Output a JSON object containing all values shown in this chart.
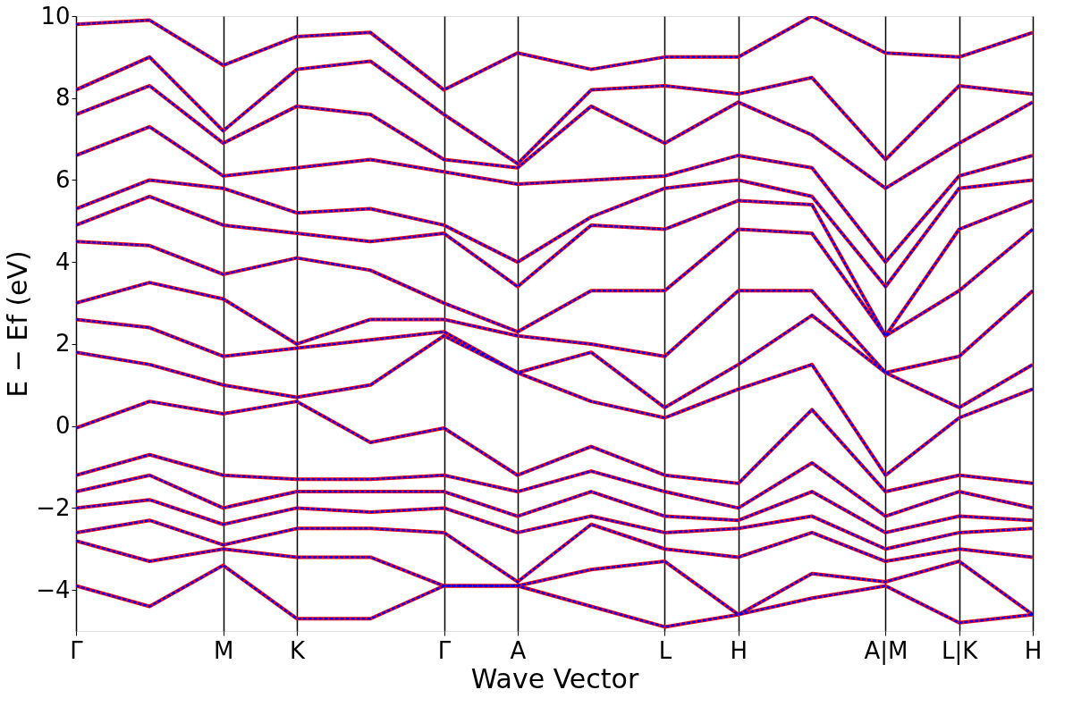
{
  "chart_data": {
    "type": "line",
    "xlabel": "Wave Vector",
    "ylabel": "E − Ef (eV)",
    "categories": [
      "Γ",
      null,
      "M",
      "K",
      null,
      "Γ",
      "A",
      null,
      "L",
      "H",
      null,
      "A|M",
      "L|K",
      "H"
    ],
    "ylim": [
      -5,
      10
    ],
    "yticks": [
      -4,
      -2,
      0,
      2,
      4,
      6,
      8,
      10
    ],
    "grid": "x",
    "marker": "none",
    "series": [
      {
        "color": "#ff0000",
        "line_style": "solid",
        "values": [
          9.8,
          9.9,
          8.8,
          9.5,
          9.6,
          8.2,
          9.1,
          8.7,
          9.0,
          9.0,
          10.0,
          9.1,
          9.0,
          9.6
        ]
      },
      {
        "color": "#ff0000",
        "line_style": "solid",
        "values": [
          8.2,
          9.0,
          7.2,
          8.7,
          8.9,
          7.6,
          6.4,
          8.2,
          8.3,
          8.1,
          8.5,
          6.5,
          8.3,
          8.1
        ]
      },
      {
        "color": "#ff0000",
        "line_style": "solid",
        "values": [
          7.6,
          8.3,
          6.9,
          7.8,
          7.6,
          6.5,
          6.3,
          7.8,
          6.9,
          7.9,
          7.1,
          5.8,
          6.9,
          7.9
        ]
      },
      {
        "color": "#ff0000",
        "line_style": "solid",
        "values": [
          6.6,
          7.3,
          6.1,
          6.3,
          6.5,
          6.2,
          5.9,
          6.0,
          6.1,
          6.6,
          6.3,
          4.0,
          6.1,
          6.6
        ]
      },
      {
        "color": "#ff0000",
        "line_style": "solid",
        "values": [
          5.3,
          6.0,
          5.8,
          5.2,
          5.3,
          4.9,
          4.0,
          5.1,
          5.8,
          6.0,
          5.6,
          3.4,
          5.8,
          6.0
        ]
      },
      {
        "color": "#ff0000",
        "line_style": "solid",
        "values": [
          4.9,
          5.6,
          4.9,
          4.7,
          4.5,
          4.7,
          3.4,
          4.9,
          4.8,
          5.5,
          5.4,
          2.2,
          4.8,
          5.5
        ]
      },
      {
        "color": "#ff0000",
        "line_style": "solid",
        "values": [
          4.5,
          4.4,
          3.7,
          4.1,
          3.8,
          3.0,
          2.3,
          3.3,
          3.3,
          4.8,
          4.7,
          2.2,
          3.3,
          4.8
        ]
      },
      {
        "color": "#ff0000",
        "line_style": "solid",
        "values": [
          3.0,
          3.5,
          3.1,
          2.0,
          2.6,
          2.6,
          2.2,
          2.0,
          1.7,
          3.3,
          3.3,
          1.3,
          1.7,
          3.3
        ]
      },
      {
        "color": "#ff0000",
        "line_style": "solid",
        "values": [
          2.6,
          2.4,
          1.7,
          1.9,
          2.1,
          2.3,
          1.3,
          1.8,
          0.45,
          1.5,
          2.7,
          1.3,
          0.45,
          1.5
        ]
      },
      {
        "color": "#ff0000",
        "line_style": "solid",
        "values": [
          1.8,
          1.5,
          1.0,
          0.7,
          1.0,
          2.2,
          1.3,
          0.6,
          0.2,
          0.9,
          1.5,
          -1.2,
          0.2,
          0.9
        ]
      },
      {
        "color": "#ff0000",
        "line_style": "solid",
        "values": [
          -0.05,
          0.6,
          0.3,
          0.6,
          -0.4,
          -0.05,
          -1.2,
          -0.5,
          -1.2,
          -1.4,
          0.4,
          -1.6,
          -1.2,
          -1.4
        ]
      },
      {
        "color": "#ff0000",
        "line_style": "solid",
        "values": [
          -1.2,
          -0.7,
          -1.2,
          -1.3,
          -1.3,
          -1.2,
          -1.6,
          -1.1,
          -1.6,
          -2.0,
          -0.9,
          -2.2,
          -1.6,
          -2.0
        ]
      },
      {
        "color": "#ff0000",
        "line_style": "solid",
        "values": [
          -1.6,
          -1.2,
          -2.0,
          -1.6,
          -1.6,
          -1.6,
          -2.2,
          -1.6,
          -2.2,
          -2.3,
          -1.6,
          -2.6,
          -2.2,
          -2.3
        ]
      },
      {
        "color": "#ff0000",
        "line_style": "solid",
        "values": [
          -2.0,
          -1.8,
          -2.4,
          -2.0,
          -2.1,
          -2.0,
          -2.6,
          -2.2,
          -2.6,
          -2.5,
          -2.2,
          -3.0,
          -2.6,
          -2.5
        ]
      },
      {
        "color": "#ff0000",
        "line_style": "solid",
        "values": [
          -2.6,
          -2.3,
          -2.9,
          -2.5,
          -2.5,
          -2.6,
          -3.8,
          -2.4,
          -3.0,
          -3.2,
          -2.6,
          -3.3,
          -3.0,
          -3.2
        ]
      },
      {
        "color": "#ff0000",
        "line_style": "solid",
        "values": [
          -2.8,
          -3.3,
          -3.0,
          -3.2,
          -3.2,
          -3.9,
          -3.9,
          -3.5,
          -3.3,
          -4.6,
          -3.6,
          -3.8,
          -3.3,
          -4.6
        ]
      },
      {
        "color": "#ff0000",
        "line_style": "solid",
        "values": [
          -3.9,
          -4.4,
          -3.4,
          -4.7,
          -4.7,
          -3.9,
          -3.9,
          -4.4,
          -4.9,
          -4.6,
          -4.2,
          -3.9,
          -4.8,
          -4.6
        ]
      },
      {
        "color": "#0000ff",
        "line_style": "dashed",
        "values": [
          9.8,
          9.9,
          8.8,
          9.5,
          9.6,
          8.2,
          9.1,
          8.7,
          9.0,
          9.0,
          10.0,
          9.1,
          9.0,
          9.6
        ]
      },
      {
        "color": "#0000ff",
        "line_style": "dashed",
        "values": [
          8.2,
          9.0,
          7.2,
          8.7,
          8.9,
          7.6,
          6.4,
          8.2,
          8.3,
          8.1,
          8.5,
          6.5,
          8.3,
          8.1
        ]
      },
      {
        "color": "#0000ff",
        "line_style": "dashed",
        "values": [
          7.6,
          8.3,
          6.9,
          7.8,
          7.6,
          6.5,
          6.3,
          7.8,
          6.9,
          7.9,
          7.1,
          5.8,
          6.9,
          7.9
        ]
      },
      {
        "color": "#0000ff",
        "line_style": "dashed",
        "values": [
          6.6,
          7.3,
          6.1,
          6.3,
          6.5,
          6.2,
          5.9,
          6.0,
          6.1,
          6.6,
          6.3,
          4.0,
          6.1,
          6.6
        ]
      },
      {
        "color": "#0000ff",
        "line_style": "dashed",
        "values": [
          5.3,
          6.0,
          5.8,
          5.2,
          5.3,
          4.9,
          4.0,
          5.1,
          5.8,
          6.0,
          5.6,
          3.4,
          5.8,
          6.0
        ]
      },
      {
        "color": "#0000ff",
        "line_style": "dashed",
        "values": [
          4.9,
          5.6,
          4.9,
          4.7,
          4.5,
          4.7,
          3.4,
          4.9,
          4.8,
          5.5,
          5.4,
          2.2,
          4.8,
          5.5
        ]
      },
      {
        "color": "#0000ff",
        "line_style": "dashed",
        "values": [
          4.5,
          4.4,
          3.7,
          4.1,
          3.8,
          3.0,
          2.3,
          3.3,
          3.3,
          4.8,
          4.7,
          2.2,
          3.3,
          4.8
        ]
      },
      {
        "color": "#0000ff",
        "line_style": "dashed",
        "values": [
          3.0,
          3.5,
          3.1,
          2.0,
          2.6,
          2.6,
          2.2,
          2.0,
          1.7,
          3.3,
          3.3,
          1.3,
          1.7,
          3.3
        ]
      },
      {
        "color": "#0000ff",
        "line_style": "dashed",
        "values": [
          2.6,
          2.4,
          1.7,
          1.9,
          2.1,
          2.3,
          1.3,
          1.8,
          0.45,
          1.5,
          2.7,
          1.3,
          0.45,
          1.5
        ]
      },
      {
        "color": "#0000ff",
        "line_style": "dashed",
        "values": [
          1.8,
          1.5,
          1.0,
          0.7,
          1.0,
          2.2,
          1.3,
          0.6,
          0.2,
          0.9,
          1.5,
          -1.2,
          0.2,
          0.9
        ]
      },
      {
        "color": "#0000ff",
        "line_style": "dashed",
        "values": [
          -0.05,
          0.6,
          0.3,
          0.6,
          -0.4,
          -0.05,
          -1.2,
          -0.5,
          -1.2,
          -1.4,
          0.4,
          -1.6,
          -1.2,
          -1.4
        ]
      },
      {
        "color": "#0000ff",
        "line_style": "dashed",
        "values": [
          -1.2,
          -0.7,
          -1.2,
          -1.3,
          -1.3,
          -1.2,
          -1.6,
          -1.1,
          -1.6,
          -2.0,
          -0.9,
          -2.2,
          -1.6,
          -2.0
        ]
      },
      {
        "color": "#0000ff",
        "line_style": "dashed",
        "values": [
          -1.6,
          -1.2,
          -2.0,
          -1.6,
          -1.6,
          -1.6,
          -2.2,
          -1.6,
          -2.2,
          -2.3,
          -1.6,
          -2.6,
          -2.2,
          -2.3
        ]
      },
      {
        "color": "#0000ff",
        "line_style": "dashed",
        "values": [
          -2.0,
          -1.8,
          -2.4,
          -2.0,
          -2.1,
          -2.0,
          -2.6,
          -2.2,
          -2.6,
          -2.5,
          -2.2,
          -3.0,
          -2.6,
          -2.5
        ]
      },
      {
        "color": "#0000ff",
        "line_style": "dashed",
        "values": [
          -2.6,
          -2.3,
          -2.9,
          -2.5,
          -2.5,
          -2.6,
          -3.8,
          -2.4,
          -3.0,
          -3.2,
          -2.6,
          -3.3,
          -3.0,
          -3.2
        ]
      },
      {
        "color": "#0000ff",
        "line_style": "dashed",
        "values": [
          -2.8,
          -3.3,
          -3.0,
          -3.2,
          -3.2,
          -3.9,
          -3.9,
          -3.5,
          -3.3,
          -4.6,
          -3.6,
          -3.8,
          -3.3,
          -4.6
        ]
      },
      {
        "color": "#0000ff",
        "line_style": "dashed",
        "values": [
          -3.9,
          -4.4,
          -3.4,
          -4.7,
          -4.7,
          -3.9,
          -3.9,
          -4.4,
          -4.9,
          -4.6,
          -4.2,
          -3.9,
          -4.8,
          -4.6
        ]
      }
    ]
  }
}
